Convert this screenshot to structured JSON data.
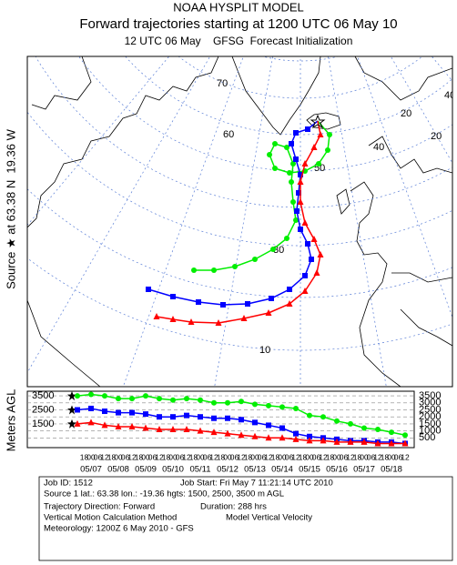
{
  "header": {
    "title": "NOAA HYSPLIT MODEL",
    "subtitle": "Forward trajectories starting at 1200 UTC 06 May 10",
    "line3": "12 UTC 06 May    GFSG  Forecast Initialization"
  },
  "map": {
    "source_label": "Source ★ at 63.38 N  19.36 W",
    "grid_labels": [
      "70",
      "60",
      "50",
      "40",
      "30",
      "20",
      "10",
      "40",
      "20"
    ]
  },
  "chart_data": {
    "type": "line",
    "y_label": "Meters AGL",
    "hour_labels": [
      "18",
      "00",
      "06",
      "12",
      "18",
      "00",
      "06",
      "12",
      "18",
      "00",
      "06",
      "12",
      "18",
      "00",
      "06",
      "12",
      "18",
      "00",
      "06",
      "12",
      "18",
      "00",
      "06",
      "12",
      "18",
      "00",
      "06",
      "12",
      "18",
      "00",
      "06",
      "12",
      "18",
      "00",
      "06",
      "12",
      "18",
      "00",
      "06",
      "12",
      "18",
      "00",
      "06",
      "12",
      "18",
      "00",
      "06",
      "12"
    ],
    "date_labels": [
      "05/07",
      "05/08",
      "05/09",
      "05/10",
      "05/11",
      "05/12",
      "05/13",
      "05/14",
      "05/15",
      "05/16",
      "05/17",
      "05/18"
    ],
    "ylim": [
      0,
      3700
    ],
    "yticks": [
      3500,
      3000,
      2500,
      2000,
      1500,
      1000,
      500
    ],
    "start_heights": [
      3500,
      2500,
      1500
    ],
    "series": [
      {
        "color": "#00ee00",
        "marker": "circle",
        "values": [
          3500,
          3600,
          3500,
          3300,
          3300,
          3500,
          3300,
          3200,
          3300,
          3200,
          3000,
          3000,
          3100,
          2900,
          2800,
          2700,
          2600,
          2100,
          2000,
          1700,
          1500,
          1200,
          1100,
          900,
          700
        ]
      },
      {
        "color": "#0000ff",
        "marker": "square",
        "values": [
          2500,
          2600,
          2400,
          2300,
          2300,
          2200,
          2000,
          2000,
          2100,
          2000,
          1900,
          1900,
          1800,
          1600,
          1400,
          1200,
          800,
          600,
          500,
          400,
          300,
          300,
          200,
          200,
          100
        ]
      },
      {
        "color": "#ff0000",
        "marker": "triangle",
        "values": [
          1500,
          1600,
          1400,
          1300,
          1300,
          1200,
          1100,
          1100,
          1100,
          1000,
          900,
          800,
          700,
          600,
          500,
          500,
          400,
          300,
          300,
          200,
          200,
          200,
          100,
          100,
          100
        ]
      }
    ]
  },
  "info": {
    "job_id": "Job ID: 1512",
    "job_start": "Job Start: Fri May  7 11:21:14 UTC 2010",
    "source": "Source 1 lat.: 63.38  lon.: -19.36  hgts: 1500, 2500, 3500 m AGL",
    "direction": "Trajectory Direction: Forward",
    "duration": "Duration: 288 hrs",
    "method": "Vertical Motion Calculation Method",
    "method_value": "Model Vertical Velocity",
    "meteorology": "Meteorology: 1200Z  6 May 2010 - GFS"
  }
}
